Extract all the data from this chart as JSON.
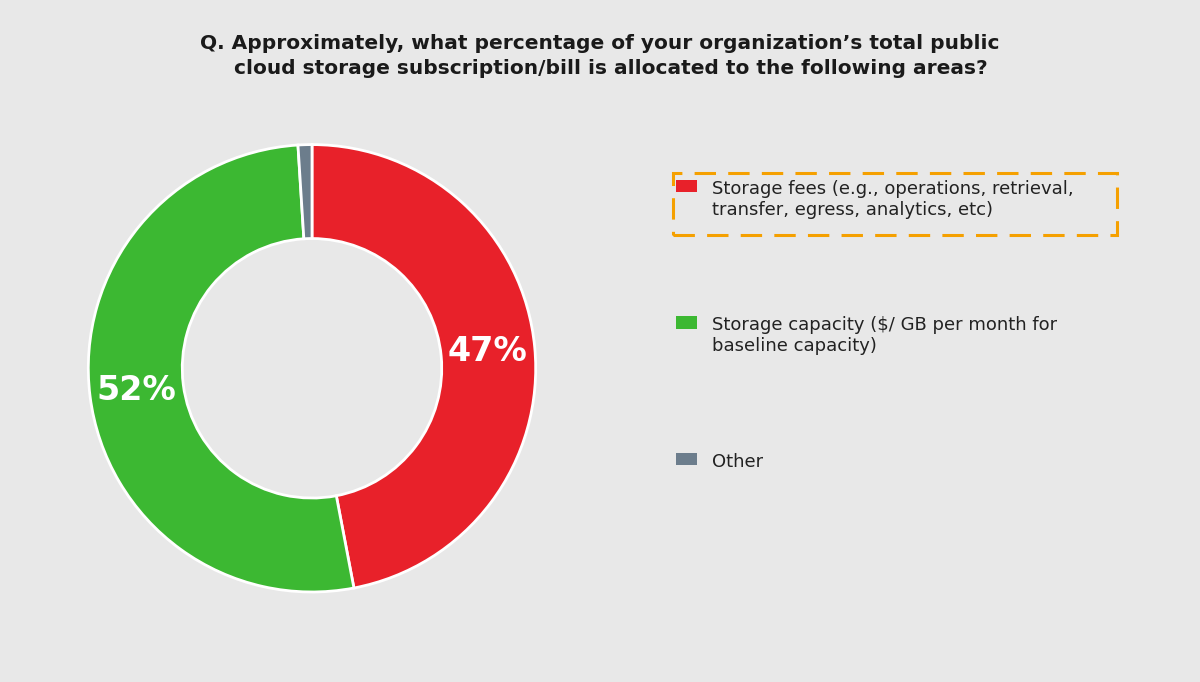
{
  "title": "Q. Approximately, what percentage of your organization’s total public\n   cloud storage subscription/bill is allocated to the following areas?",
  "slices": [
    47,
    52,
    1
  ],
  "colors": [
    "#e8212a",
    "#3cb832",
    "#6c7d8c"
  ],
  "labels": [
    "47%",
    "52%",
    ""
  ],
  "legend_items": [
    {
      "label": "Storage fees (e.g., operations, retrieval,\ntransfer, egress, analytics, etc)",
      "color": "#e8212a",
      "boxed": true
    },
    {
      "label": "Storage capacity ($/ GB per month for\nbaseline capacity)",
      "color": "#3cb832",
      "boxed": false
    },
    {
      "label": "Other",
      "color": "#6c7d8c",
      "boxed": false
    }
  ],
  "background_color": "#e8e8e8",
  "title_fontsize": 14.5,
  "label_fontsize": 24,
  "legend_fontsize": 13,
  "wedge_edge_color": "white",
  "donut_width": 0.42,
  "start_angle": 90
}
